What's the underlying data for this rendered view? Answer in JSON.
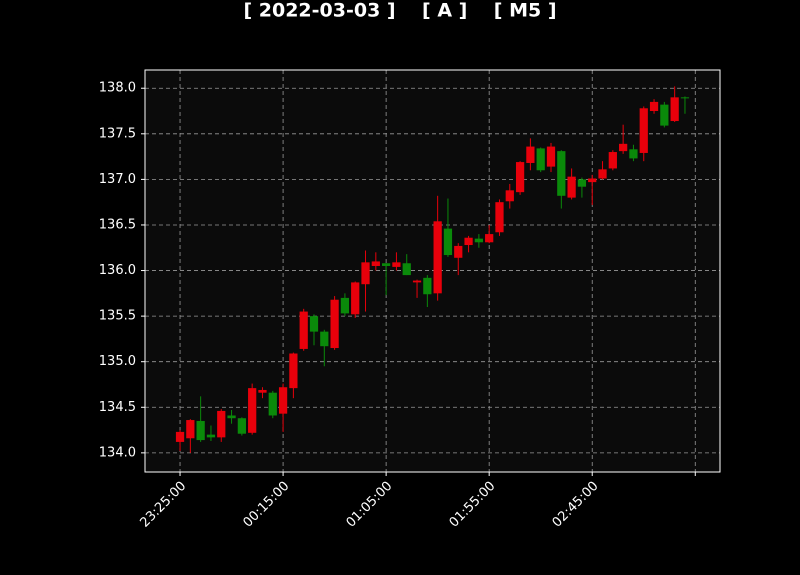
{
  "chart_data": {
    "type": "candlestick",
    "title": "[ 2022-03-03 ]    [ A ]    [ M5 ]",
    "categories": [
      "23:25:00",
      "23:30:00",
      "23:35:00",
      "23:40:00",
      "23:45:00",
      "23:50:00",
      "23:55:00",
      "00:00:00",
      "00:05:00",
      "00:10:00",
      "00:15:00",
      "00:20:00",
      "00:25:00",
      "00:30:00",
      "00:35:00",
      "00:40:00",
      "00:45:00",
      "00:50:00",
      "00:55:00",
      "01:00:00",
      "01:05:00",
      "01:10:00",
      "01:15:00",
      "01:20:00",
      "01:25:00",
      "01:30:00",
      "01:35:00",
      "01:40:00",
      "01:45:00",
      "01:50:00",
      "01:55:00",
      "02:00:00",
      "02:05:00",
      "02:10:00",
      "02:15:00",
      "02:20:00",
      "02:25:00",
      "02:30:00",
      "02:35:00",
      "02:40:00",
      "02:45:00",
      "02:50:00",
      "02:55:00",
      "03:00:00",
      "03:05:00",
      "03:10:00",
      "03:15:00",
      "03:20:00",
      "03:25:00",
      "03:30:00"
    ],
    "open": [
      134.12,
      134.16,
      134.35,
      134.2,
      134.17,
      134.41,
      134.38,
      134.22,
      134.66,
      134.66,
      134.43,
      134.71,
      135.14,
      135.5,
      135.33,
      135.15,
      135.7,
      135.52,
      135.85,
      136.05,
      136.08,
      136.04,
      136.08,
      135.87,
      135.92,
      135.75,
      136.46,
      136.14,
      136.28,
      136.35,
      136.31,
      136.42,
      136.76,
      136.86,
      137.18,
      137.34,
      137.14,
      137.31,
      136.8,
      137.0,
      136.97,
      137.01,
      137.12,
      137.31,
      137.33,
      137.29,
      137.75,
      137.82,
      137.64,
      137.9
    ],
    "high": [
      134.25,
      134.37,
      134.62,
      134.3,
      134.48,
      134.47,
      134.39,
      134.76,
      134.72,
      134.68,
      134.76,
      135.1,
      135.58,
      135.52,
      135.35,
      135.72,
      135.75,
      135.88,
      136.22,
      136.2,
      136.08,
      136.2,
      136.18,
      135.9,
      135.95,
      136.82,
      136.79,
      136.3,
      136.38,
      136.4,
      136.5,
      136.78,
      136.95,
      137.2,
      137.45,
      137.35,
      137.4,
      137.32,
      137.12,
      137.02,
      137.05,
      137.2,
      137.32,
      137.6,
      137.38,
      137.8,
      137.88,
      137.85,
      138.02,
      137.91
    ],
    "low": [
      134.02,
      134.0,
      134.12,
      134.13,
      134.12,
      134.32,
      134.19,
      134.2,
      134.6,
      134.38,
      134.23,
      134.6,
      135.12,
      135.18,
      134.95,
      135.13,
      135.5,
      135.48,
      135.55,
      136.0,
      135.73,
      136.0,
      135.95,
      135.7,
      135.6,
      135.67,
      136.15,
      135.95,
      136.2,
      136.25,
      136.3,
      136.38,
      136.68,
      136.83,
      137.1,
      137.08,
      137.08,
      136.68,
      136.78,
      136.8,
      136.72,
      137.0,
      137.1,
      137.28,
      137.2,
      137.2,
      137.72,
      137.57,
      137.63,
      137.72
    ],
    "close": [
      134.23,
      134.36,
      134.14,
      134.17,
      134.46,
      134.38,
      134.21,
      134.71,
      134.69,
      134.41,
      134.72,
      135.09,
      135.55,
      135.33,
      135.17,
      135.68,
      135.53,
      135.87,
      136.09,
      136.1,
      136.05,
      136.09,
      135.95,
      135.89,
      135.74,
      136.54,
      136.17,
      136.27,
      136.36,
      136.31,
      136.4,
      136.75,
      136.88,
      137.19,
      137.36,
      137.1,
      137.36,
      136.82,
      137.03,
      136.92,
      137.01,
      137.11,
      137.3,
      137.39,
      137.23,
      137.78,
      137.85,
      137.59,
      137.9,
      137.89
    ],
    "up_color": "#e8000b",
    "down_color": "#0a8a0a",
    "xlim": [
      -3.4,
      52.4
    ],
    "xticks": [
      0,
      10,
      20,
      30,
      40,
      50
    ],
    "ylim": [
      133.79,
      138.2
    ],
    "yticks": [
      {
        "value": 134,
        "label": "134.0"
      },
      134.5,
      {
        "value": 135,
        "label": "135.0"
      },
      135.5,
      {
        "value": 136,
        "label": "136.0"
      },
      136.5,
      {
        "value": 137,
        "label": "137.0"
      },
      137.5,
      {
        "value": 138,
        "label": "138.0"
      }
    ],
    "grid": true
  }
}
